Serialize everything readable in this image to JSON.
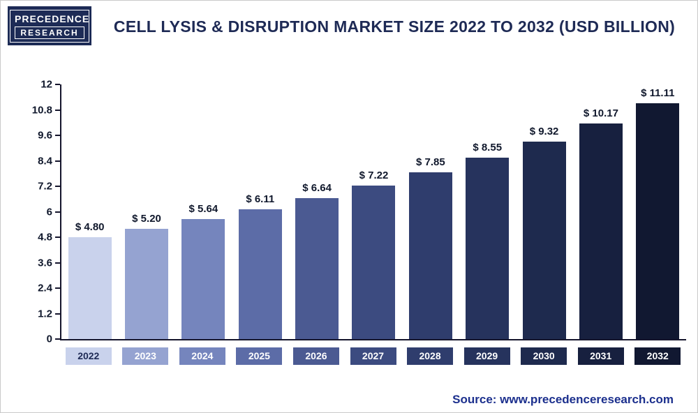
{
  "header": {
    "logo": {
      "line1": "PRECEDENCE",
      "line2": "RESEARCH"
    },
    "title": "CELL LYSIS & DISRUPTION MARKET SIZE 2022 TO 2032 (USD BILLION)"
  },
  "footer": {
    "source_label": "Source:",
    "source_url": "www.precedenceresearch.com"
  },
  "colors": {
    "title": "#1e2a55",
    "axis": "#15152c",
    "source_text": "#1b2f8d",
    "logo_background": "#1d2b56"
  },
  "chart_data": {
    "type": "bar",
    "title": "CELL LYSIS & DISRUPTION MARKET SIZE 2022 TO 2032 (USD BILLION)",
    "unit": "USD Billion",
    "xlabel": "",
    "ylabel": "",
    "ylim": [
      0,
      12
    ],
    "yticks": [
      "12",
      "10.8",
      "9.6",
      "8.4",
      "7.2",
      "6",
      "4.8",
      "3.6",
      "2.4",
      "1.2",
      "0"
    ],
    "grid": false,
    "legend": "none",
    "categories": [
      "2022",
      "2023",
      "2024",
      "2025",
      "2026",
      "2027",
      "2028",
      "2029",
      "2030",
      "2031",
      "2032"
    ],
    "values": [
      4.8,
      5.2,
      5.64,
      6.11,
      6.64,
      7.22,
      7.85,
      8.55,
      9.32,
      10.17,
      11.11
    ],
    "bar_labels": [
      "$ 4.80",
      "$ 5.20",
      "$ 5.64",
      "$ 6.11",
      "$ 6.64",
      "$ 7.22",
      "$ 7.85",
      "$ 8.55",
      "$ 9.32",
      "$ 10.17",
      "$ 11.11"
    ],
    "bar_colors": [
      "#c9d2ec",
      "#95a3d1",
      "#7585bd",
      "#5c6ca7",
      "#4b5a92",
      "#3c4b80",
      "#2f3d6d",
      "#26335d",
      "#1e2a4e",
      "#17203f",
      "#111831"
    ],
    "xtick_text_colors": [
      "#1e2a55",
      "#ffffff",
      "#ffffff",
      "#ffffff",
      "#ffffff",
      "#ffffff",
      "#ffffff",
      "#ffffff",
      "#ffffff",
      "#ffffff",
      "#ffffff"
    ]
  }
}
